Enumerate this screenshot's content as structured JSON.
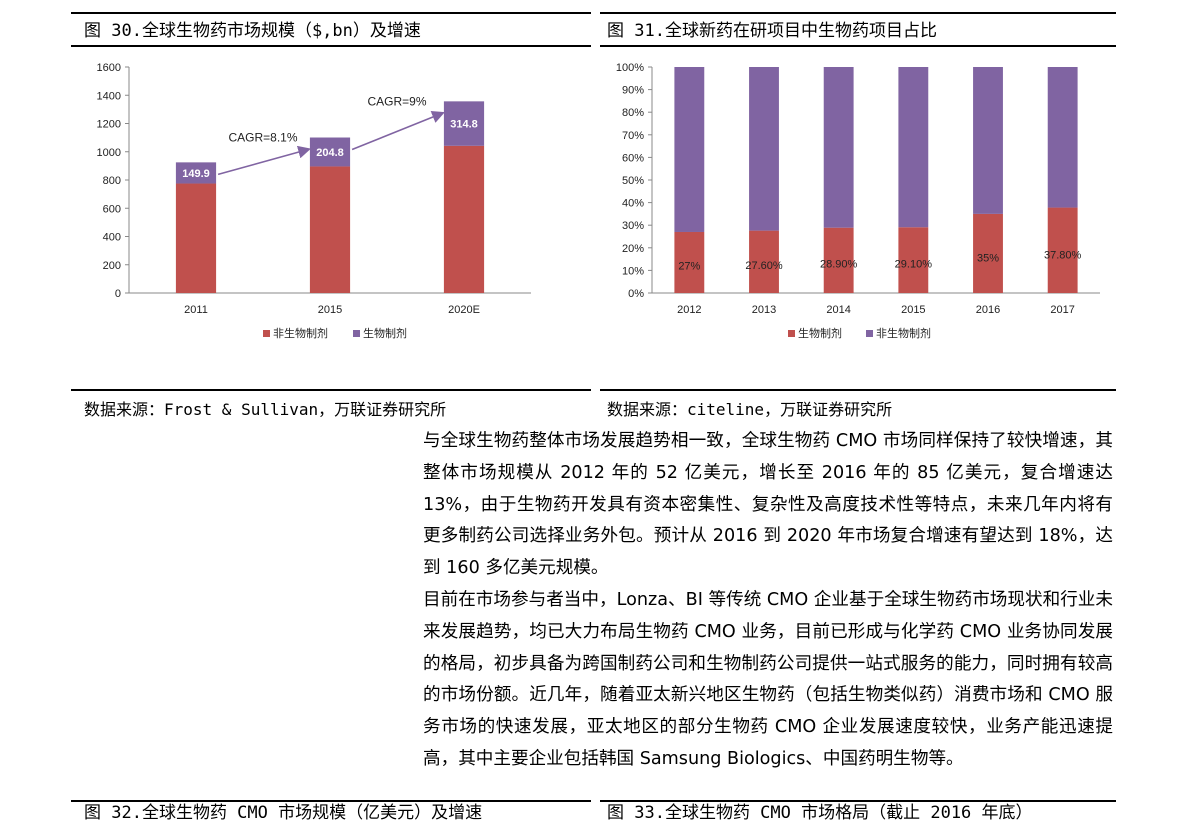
{
  "figure30": {
    "title": "图 30.全球生物药市场规模（$,bn）及增速",
    "source": "数据来源：Frost & Sullivan，万联证券研究所"
  },
  "figure31": {
    "title": "图 31.全球新药在研项目中生物药项目占比",
    "source": "数据来源：citeline，万联证券研究所"
  },
  "chart_data": [
    {
      "type": "bar",
      "stacked": true,
      "categories": [
        "2011",
        "2015",
        "2020E"
      ],
      "series": [
        {
          "name": "非生物制剂",
          "color": "#C0504D",
          "values": [
            775,
            896,
            1042
          ]
        },
        {
          "name": "生物制剂",
          "color": "#8064A2",
          "values": [
            149.9,
            204.8,
            314.8
          ]
        }
      ],
      "data_labels": [
        "149.9",
        "204.8",
        "314.8"
      ],
      "ylim": [
        0,
        1600
      ],
      "yticks": [
        "0",
        "200",
        "400",
        "600",
        "800",
        "1000",
        "1200",
        "1400",
        "1600"
      ],
      "annotations": [
        "CAGR=8.1%",
        "CAGR=9%"
      ],
      "legend": "bottom",
      "grid": false
    },
    {
      "type": "bar",
      "stacked": true,
      "categories": [
        "2012",
        "2013",
        "2014",
        "2015",
        "2016",
        "2017"
      ],
      "series": [
        {
          "name": "生物制剂",
          "color": "#C0504D",
          "values": [
            27,
            27.6,
            28.9,
            29.1,
            35,
            37.8
          ]
        },
        {
          "name": "非生物制剂",
          "color": "#8064A2",
          "values": [
            73,
            72.4,
            71.1,
            70.9,
            65,
            62.2
          ]
        }
      ],
      "data_labels": [
        "27%",
        "27.60%",
        "28.90%",
        "29.10%",
        "35%",
        "37.80%"
      ],
      "ylim": [
        0,
        100
      ],
      "yticks": [
        "0%",
        "10%",
        "20%",
        "30%",
        "40%",
        "50%",
        "60%",
        "70%",
        "80%",
        "90%",
        "100%"
      ],
      "legend": "bottom",
      "grid": false
    }
  ],
  "body": {
    "p1": "与全球生物药整体市场发展趋势相一致，全球生物药 CMO 市场同样保持了较快增速，其整体市场规模从 2012 年的 52 亿美元，增长至 2016 年的 85 亿美元，复合增速达 13%，由于生物药开发具有资本密集性、复杂性及高度技术性等特点，未来几年内将有更多制药公司选择业务外包。预计从 2016 到 2020 年市场复合增速有望达到 18%，达到 160 多亿美元规模。",
    "p2": "目前在市场参与者当中，Lonza、BI 等传统 CMO 企业基于全球生物药市场现状和行业未来发展趋势，均已大力布局生物药 CMO 业务，目前已形成与化学药 CMO 业务协同发展的格局，初步具备为跨国制药公司和生物制药公司提供一站式服务的能力，同时拥有较高的市场份额。近几年，随着亚太新兴地区生物药（包括生物类似药）消费市场和 CMO 服务市场的快速发展，亚太地区的部分生物药 CMO 企业发展速度较快，业务产能迅速提高，其中主要企业包括韩国 Samsung Biologics、中国药明生物等。"
  },
  "next_figures": {
    "left_title": "图 32.全球生物药 CMO 市场规模（亿美元）及增速",
    "right_title": "图 33.全球生物药 CMO 市场格局（截止 2016 年底）"
  }
}
